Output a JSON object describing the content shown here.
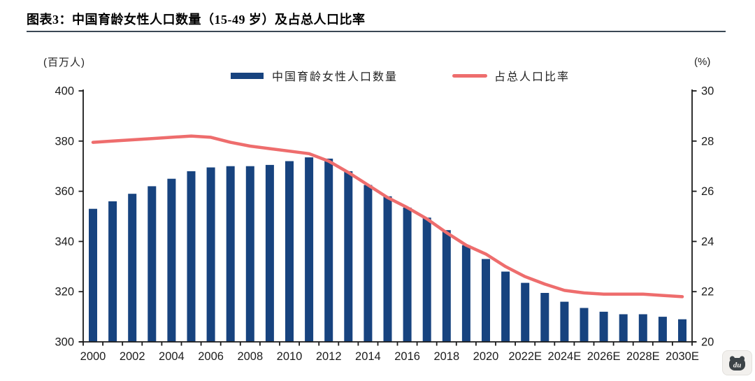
{
  "page": {
    "title_prefix": "图表3：",
    "title": "中国育龄女性人口数量（15-49 岁）及占总人口比率",
    "watermark": "du"
  },
  "chart_data": {
    "type": "bar",
    "title": "中国育龄女性人口数量（15-49 岁）及占总人口比率",
    "left_axis_unit": "(百万人)",
    "right_axis_unit": "(%)",
    "left_axis": {
      "min": 300,
      "max": 400,
      "ticks": [
        300,
        320,
        340,
        360,
        380,
        400
      ]
    },
    "right_axis": {
      "min": 20,
      "max": 30,
      "ticks": [
        20,
        22,
        24,
        26,
        28,
        30
      ]
    },
    "n_points": 31,
    "x_labels": [
      "2000",
      "2002",
      "2004",
      "2006",
      "2008",
      "2010",
      "2012",
      "2014",
      "2016",
      "2018",
      "2020",
      "2022E",
      "2024E",
      "2026E",
      "2028E",
      "2030E"
    ],
    "grid": false,
    "legend_position": "top",
    "series": [
      {
        "name": "中国育龄女性人口数量",
        "type": "bar",
        "axis": "left",
        "color": "#17437f",
        "values": [
          353,
          356,
          359,
          362,
          365,
          368,
          369.5,
          370,
          370,
          370.5,
          372,
          373.5,
          373,
          368,
          362.5,
          358,
          353.5,
          349.5,
          344.5,
          338.5,
          333,
          328,
          323.5,
          319.5,
          316,
          313.5,
          312,
          311,
          311,
          310,
          309
        ]
      },
      {
        "name": "占总人口比率",
        "type": "line",
        "axis": "right",
        "color": "#ee6d6d",
        "values": [
          27.95,
          28.0,
          28.05,
          28.1,
          28.15,
          28.2,
          28.15,
          27.95,
          27.8,
          27.7,
          27.6,
          27.5,
          27.2,
          26.75,
          26.25,
          25.75,
          25.35,
          24.9,
          24.35,
          23.85,
          23.5,
          23.0,
          22.6,
          22.3,
          22.05,
          21.95,
          21.9,
          21.9,
          21.9,
          21.85,
          21.8
        ]
      }
    ]
  }
}
